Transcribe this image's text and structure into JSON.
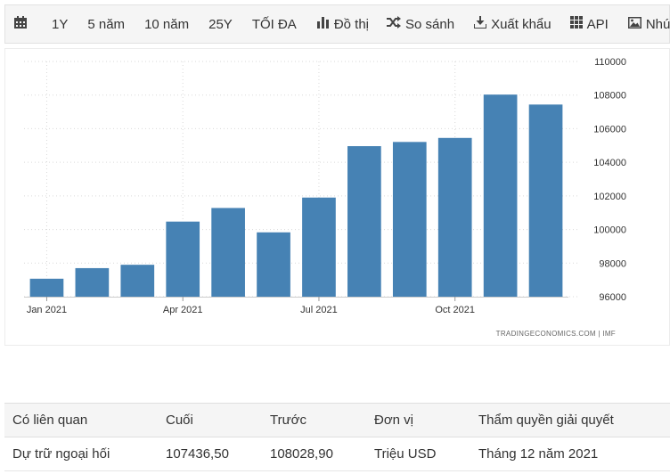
{
  "toolbar": {
    "items": [
      {
        "icon": "calendar-icon",
        "label": ""
      },
      {
        "icon": "",
        "label": "1Y"
      },
      {
        "icon": "",
        "label": "5 năm"
      },
      {
        "icon": "",
        "label": "10 năm"
      },
      {
        "icon": "",
        "label": "25Y"
      },
      {
        "icon": "",
        "label": "TỐI ĐA"
      },
      {
        "icon": "bar-chart-icon",
        "label": "Đồ thị"
      },
      {
        "icon": "shuffle-icon",
        "label": "So sánh"
      },
      {
        "icon": "download-icon",
        "label": "Xuất khẩu"
      },
      {
        "icon": "grid-icon",
        "label": "API"
      },
      {
        "icon": "image-icon",
        "label": "Nhúng"
      }
    ]
  },
  "chart_data": {
    "type": "bar",
    "categories": [
      "Jan 2021",
      "Feb 2021",
      "Mar 2021",
      "Apr 2021",
      "May 2021",
      "Jun 2021",
      "Jul 2021",
      "Aug 2021",
      "Sep 2021",
      "Oct 2021",
      "Nov 2021",
      "Dec 2021"
    ],
    "values": [
      97070,
      97700,
      97900,
      100470,
      101280,
      99830,
      101900,
      104960,
      105210,
      105450,
      108028.9,
      107436.5
    ],
    "x_tick_labels": [
      {
        "label": "Jan 2021",
        "index": 0
      },
      {
        "label": "Apr 2021",
        "index": 3
      },
      {
        "label": "Jul 2021",
        "index": 6
      },
      {
        "label": "Oct 2021",
        "index": 9
      }
    ],
    "y_ticks": [
      96000,
      98000,
      100000,
      102000,
      104000,
      106000,
      108000,
      110000
    ],
    "ylim": [
      96000,
      110000
    ],
    "grid": true,
    "bar_color": "#4682b4",
    "source": "TRADINGECONOMICS.COM | IMF"
  },
  "table": {
    "headers": [
      "Có liên quan",
      "Cuối",
      "Trước",
      "Đơn vị",
      "Thẩm quyền giải quyết"
    ],
    "rows": [
      [
        "Dự trữ ngoại hối",
        "107436,50",
        "108028,90",
        "Triệu USD",
        "Tháng 12 năm 2021"
      ]
    ]
  }
}
